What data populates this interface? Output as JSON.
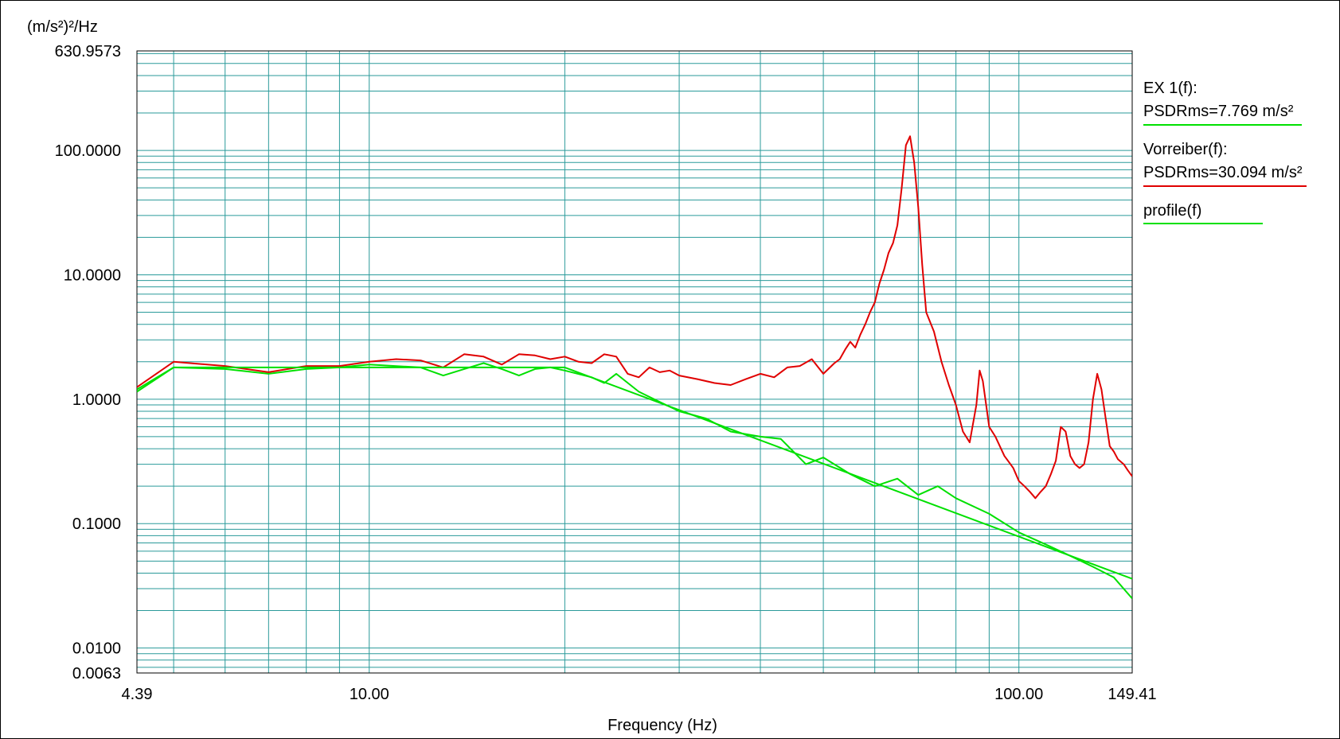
{
  "chart_data": {
    "type": "line",
    "title": "",
    "xlabel": "Frequency (Hz)",
    "ylabel": "(m/s²)²/Hz",
    "xscale": "log",
    "yscale": "log",
    "xlim": [
      4.39,
      149.41
    ],
    "ylim": [
      0.0063,
      630.9573
    ],
    "grid": true,
    "legend_position": "right",
    "x_tick_labels": [
      "4.39",
      "10.00",
      "100.00",
      "149.41"
    ],
    "y_tick_labels": [
      "630.9573",
      "100.0000",
      "10.0000",
      "1.0000",
      "0.1000",
      "0.0100",
      "0.0063"
    ],
    "grid_x": [
      5,
      6,
      7,
      8,
      9,
      10,
      20,
      30,
      40,
      50,
      60,
      70,
      80,
      90,
      100
    ],
    "series": [
      {
        "name": "EX 1(f):",
        "stat": "PSDRms=7.769 m/s²",
        "color": "#00e000",
        "x": [
          4.39,
          5,
          6,
          7,
          8,
          9,
          10,
          12,
          13,
          14,
          15,
          16,
          17,
          18,
          19,
          20,
          22,
          23,
          24,
          26,
          28,
          30,
          33,
          36,
          40,
          43,
          47,
          50,
          55,
          60,
          65,
          70,
          75,
          80,
          90,
          100,
          110,
          120,
          130,
          140,
          149.41
        ],
        "y": [
          1.15,
          1.8,
          1.75,
          1.6,
          1.75,
          1.8,
          1.9,
          1.8,
          1.55,
          1.75,
          1.95,
          1.75,
          1.55,
          1.75,
          1.8,
          1.7,
          1.5,
          1.35,
          1.6,
          1.15,
          0.95,
          0.8,
          0.7,
          0.55,
          0.5,
          0.48,
          0.3,
          0.34,
          0.25,
          0.2,
          0.23,
          0.17,
          0.2,
          0.16,
          0.12,
          0.085,
          0.068,
          0.055,
          0.045,
          0.037,
          0.025
        ]
      },
      {
        "name": "Vorreiber(f):",
        "stat": "PSDRms=30.094 m/s²",
        "color": "#e00000",
        "x": [
          4.39,
          5,
          6,
          7,
          8,
          9,
          10,
          11,
          12,
          13,
          14,
          15,
          16,
          17,
          18,
          19,
          20,
          21,
          22,
          23,
          24,
          25,
          26,
          27,
          28,
          29,
          30,
          32,
          34,
          36,
          38,
          40,
          42,
          44,
          46,
          48,
          50,
          52,
          53,
          54,
          55,
          56,
          57,
          58,
          59,
          60,
          61,
          62,
          63,
          64,
          65,
          66,
          67,
          68,
          69,
          70,
          71,
          72,
          74,
          76,
          78,
          80,
          82,
          84,
          86,
          87,
          88,
          90,
          92,
          95,
          98,
          100,
          102,
          104,
          106,
          108,
          110,
          112,
          114,
          116,
          118,
          120,
          122,
          124,
          126,
          128,
          130,
          132,
          134,
          136,
          138,
          140,
          142,
          145,
          147,
          149.41
        ],
        "y": [
          1.25,
          2.0,
          1.85,
          1.65,
          1.85,
          1.85,
          2.0,
          2.1,
          2.05,
          1.8,
          2.3,
          2.2,
          1.9,
          2.3,
          2.25,
          2.1,
          2.2,
          2.0,
          1.95,
          2.3,
          2.2,
          1.6,
          1.5,
          1.8,
          1.65,
          1.7,
          1.55,
          1.45,
          1.35,
          1.3,
          1.45,
          1.6,
          1.5,
          1.8,
          1.85,
          2.1,
          1.6,
          1.95,
          2.1,
          2.5,
          2.9,
          2.6,
          3.3,
          4.0,
          5.0,
          6.0,
          8.5,
          11.0,
          15.0,
          18.0,
          25.0,
          50.0,
          110.0,
          130.0,
          80.0,
          35.0,
          12.0,
          5.0,
          3.5,
          2.0,
          1.3,
          0.9,
          0.55,
          0.45,
          0.9,
          1.7,
          1.4,
          0.6,
          0.5,
          0.35,
          0.28,
          0.22,
          0.2,
          0.18,
          0.16,
          0.18,
          0.2,
          0.25,
          0.32,
          0.6,
          0.55,
          0.35,
          0.3,
          0.28,
          0.3,
          0.45,
          1.0,
          1.6,
          1.2,
          0.7,
          0.42,
          0.38,
          0.33,
          0.3,
          0.27,
          0.24
        ]
      },
      {
        "name": "profile(f)",
        "stat": "",
        "color": "#00e000",
        "x": [
          4.39,
          5,
          20,
          149.41
        ],
        "y": [
          1.2,
          1.8,
          1.8,
          0.036
        ]
      }
    ]
  }
}
